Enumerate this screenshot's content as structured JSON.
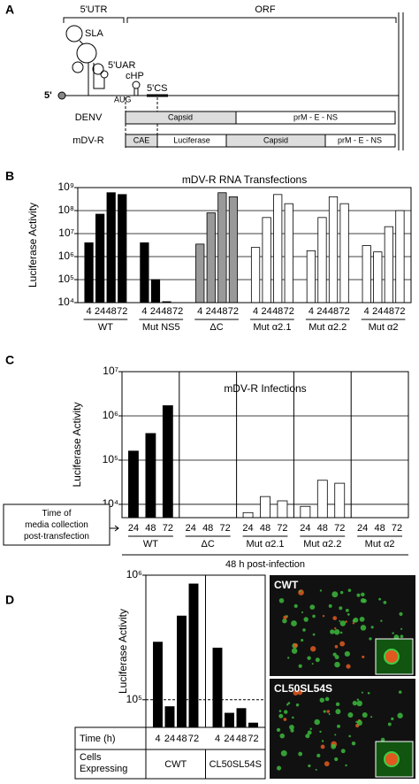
{
  "panel_labels": [
    "A",
    "B",
    "C",
    "D"
  ],
  "diagram": {
    "utr": "5'UTR",
    "orf": "ORF",
    "sla": "SLA",
    "uar": "5'UAR",
    "chp": "cHP",
    "cs": "5'CS",
    "aug": "AUG",
    "five": "5'",
    "rows": [
      {
        "name": "DENV",
        "segments": [
          "Capsid",
          "prM - E - NS"
        ]
      },
      {
        "name": "mDV-R",
        "segments": [
          "CAE",
          "Luciferase",
          "Capsid",
          "prM - E - NS"
        ]
      }
    ]
  },
  "chart_data": [
    {
      "type": "bar",
      "title": "mDV-R RNA Transfections",
      "ylabel": "Luciferase Activity",
      "log_scale": true,
      "grid": true,
      "ylim": [
        10000,
        1000000000
      ],
      "yticks": [
        {
          "value": 10000,
          "label": "10⁴"
        },
        {
          "value": 100000,
          "label": "10⁵"
        },
        {
          "value": 1000000,
          "label": "10⁶"
        },
        {
          "value": 10000000,
          "label": "10⁷"
        },
        {
          "value": 100000000,
          "label": "10⁸"
        },
        {
          "value": 1000000000,
          "label": "10⁹"
        }
      ],
      "groups": [
        {
          "name": "WT",
          "color": "#000000",
          "categories": [
            "4",
            "24",
            "48",
            "72"
          ],
          "values": [
            4000000,
            70000000,
            600000000,
            500000000
          ]
        },
        {
          "name": "Mut NS5",
          "color": "#000000",
          "categories": [
            "4",
            "24",
            "48",
            "72"
          ],
          "values": [
            4000000,
            100000,
            11000,
            null
          ]
        },
        {
          "name": "ΔC",
          "color": "#999999",
          "categories": [
            "4",
            "24",
            "48",
            "72"
          ],
          "values": [
            3500000,
            80000000,
            600000000,
            400000000
          ]
        },
        {
          "name": "Mut α2.1",
          "color": "#ffffff",
          "categories": [
            "4",
            "24",
            "48",
            "72"
          ],
          "values": [
            2500000,
            50000000,
            500000000,
            200000000
          ]
        },
        {
          "name": "Mut α2.2",
          "color": "#ffffff",
          "categories": [
            "4",
            "24",
            "48",
            "72"
          ],
          "values": [
            1800000,
            50000000,
            400000000,
            200000000
          ]
        },
        {
          "name": "Mut α2",
          "color": "#ffffff",
          "categories": [
            "4",
            "24",
            "48",
            "72"
          ],
          "values": [
            3000000,
            1600000,
            20000000,
            100000000
          ]
        }
      ]
    },
    {
      "type": "bar",
      "title": "mDV-R Infections",
      "ylabel": "Luciferase Activity",
      "log_scale": true,
      "grid": true,
      "group_dividers": true,
      "x_note": "Time of media collection post-transfection",
      "group_caption": "48 h post-infection",
      "ylim": [
        5000,
        10000000
      ],
      "yticks": [
        {
          "value": 10000,
          "label": "10⁴"
        },
        {
          "value": 100000,
          "label": "10⁵"
        },
        {
          "value": 1000000,
          "label": "10⁶"
        },
        {
          "value": 10000000,
          "label": "10⁷"
        }
      ],
      "groups": [
        {
          "name": "WT",
          "color": "#000000",
          "categories": [
            "24",
            "48",
            "72"
          ],
          "values": [
            160000,
            400000,
            1700000
          ]
        },
        {
          "name": "ΔC",
          "color": "#ffffff",
          "categories": [
            "24",
            "48",
            "72"
          ],
          "values": [
            null,
            null,
            null
          ]
        },
        {
          "name": "Mut α2.1",
          "color": "#ffffff",
          "categories": [
            "24",
            "48",
            "72"
          ],
          "values": [
            6500,
            15000,
            12000
          ]
        },
        {
          "name": "Mut α2.2",
          "color": "#ffffff",
          "categories": [
            "24",
            "48",
            "72"
          ],
          "values": [
            9000,
            35000,
            30000
          ]
        },
        {
          "name": "Mut α2",
          "color": "#ffffff",
          "categories": [
            "24",
            "48",
            "72"
          ],
          "values": [
            null,
            null,
            null
          ]
        }
      ]
    },
    {
      "type": "bar",
      "ylabel": "Luciferase Activity",
      "log_scale": true,
      "grid": false,
      "group_dividers": true,
      "reference_line": 100000,
      "row_labels": [
        "Time (h)",
        "Cells Expressing"
      ],
      "ylim": [
        60000,
        1000000
      ],
      "yticks": [
        {
          "value": 100000,
          "label": "10⁵"
        },
        {
          "value": 1000000,
          "label": "10⁶"
        }
      ],
      "groups": [
        {
          "name": "CWT",
          "color": "#000000",
          "categories": [
            "4",
            "24",
            "48",
            "72"
          ],
          "values": [
            290000,
            88000,
            470000,
            850000
          ]
        },
        {
          "name": "CL50SL54S",
          "color": "#000000",
          "categories": [
            "4",
            "24",
            "48",
            "72"
          ],
          "values": [
            260000,
            78000,
            85000,
            65000
          ]
        }
      ]
    }
  ],
  "micrographs": [
    {
      "label": "CWT"
    },
    {
      "label": "CL50SL54S"
    }
  ]
}
